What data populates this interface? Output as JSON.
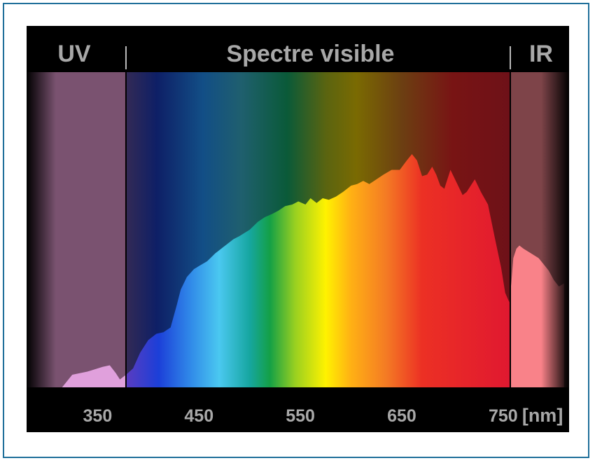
{
  "chart_data": {
    "type": "area",
    "title": "",
    "xlabel": "",
    "x_unit_label": "[nm]",
    "ylabel": "",
    "xlim": [
      280,
      815
    ],
    "ylim": [
      0,
      1
    ],
    "x_ticks": [
      350,
      450,
      550,
      650,
      750
    ],
    "regions": [
      {
        "label": "UV",
        "x_start": 280,
        "x_end": 378
      },
      {
        "label": "Spectre visible",
        "x_start": 378,
        "x_end": 757
      },
      {
        "label": "IR",
        "x_start": 757,
        "x_end": 815
      }
    ],
    "series": [
      {
        "x": [
          315,
          325,
          340,
          355,
          362,
          368,
          372,
          378,
          385,
          392,
          400,
          408,
          415,
          422,
          428,
          432,
          438,
          445,
          450,
          458,
          466,
          472,
          478,
          484,
          490,
          495,
          500,
          508,
          515,
          522,
          528,
          535,
          542,
          548,
          555,
          560,
          566,
          572,
          578,
          585,
          592,
          600,
          606,
          612,
          618,
          625,
          632,
          640,
          648,
          655,
          660,
          665,
          670,
          675,
          680,
          684,
          688,
          692,
          698,
          704,
          710,
          714,
          718,
          722,
          728,
          735,
          742,
          748,
          752,
          756,
          758,
          760,
          763,
          766,
          770,
          775,
          780,
          785,
          790,
          795,
          800,
          805,
          810
        ],
        "y": [
          0.0,
          0.04,
          0.05,
          0.065,
          0.07,
          0.045,
          0.025,
          0.04,
          0.06,
          0.11,
          0.15,
          0.17,
          0.175,
          0.19,
          0.26,
          0.31,
          0.35,
          0.375,
          0.385,
          0.4,
          0.425,
          0.44,
          0.455,
          0.47,
          0.48,
          0.49,
          0.5,
          0.525,
          0.54,
          0.55,
          0.56,
          0.575,
          0.58,
          0.59,
          0.58,
          0.6,
          0.585,
          0.6,
          0.595,
          0.605,
          0.62,
          0.64,
          0.645,
          0.655,
          0.645,
          0.66,
          0.675,
          0.69,
          0.69,
          0.72,
          0.74,
          0.72,
          0.67,
          0.675,
          0.7,
          0.675,
          0.64,
          0.63,
          0.69,
          0.65,
          0.61,
          0.62,
          0.64,
          0.66,
          0.62,
          0.58,
          0.47,
          0.38,
          0.3,
          0.27,
          0.33,
          0.41,
          0.44,
          0.45,
          0.44,
          0.43,
          0.42,
          0.41,
          0.39,
          0.37,
          0.34,
          0.32,
          0.33
        ]
      }
    ]
  }
}
